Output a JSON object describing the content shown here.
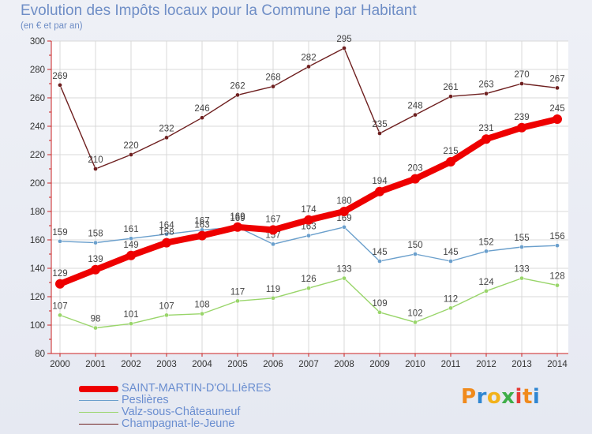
{
  "chart_data": {
    "type": "line",
    "title": "Evolution des Impôts locaux pour la Commune par Habitant",
    "subtitle": "(en € et par an)",
    "categories": [
      "2000",
      "2001",
      "2002",
      "2003",
      "2004",
      "2005",
      "2006",
      "2007",
      "2008",
      "2009",
      "2010",
      "2011",
      "2012",
      "2013",
      "2014"
    ],
    "ylim": [
      80,
      300
    ],
    "yticks": [
      80,
      100,
      120,
      140,
      160,
      180,
      200,
      220,
      240,
      260,
      280,
      300
    ],
    "grid": true,
    "legend_position": "bottom-left",
    "series": [
      {
        "name": "Champagnat-le-Jeune",
        "color": "#6e1f1f",
        "values": [
          269,
          210,
          220,
          232,
          246,
          262,
          268,
          282,
          295,
          235,
          248,
          261,
          263,
          270,
          267
        ]
      },
      {
        "name": "Valz-sous-Châteauneuf",
        "color": "#99d56a",
        "values": [
          107,
          98,
          101,
          107,
          108,
          117,
          119,
          126,
          133,
          109,
          102,
          112,
          124,
          133,
          128
        ]
      },
      {
        "name": "Peslières",
        "color": "#6a9fcc",
        "values": [
          159,
          158,
          161,
          164,
          167,
          169,
          157,
          163,
          169,
          145,
          150,
          145,
          152,
          155,
          156
        ]
      },
      {
        "name": "SAINT-MARTIN-D'OLLIèRES",
        "color": "#ee0000",
        "values": [
          129,
          139,
          149,
          158,
          163,
          169,
          167,
          174,
          180,
          194,
          203,
          215,
          231,
          239,
          245
        ]
      }
    ]
  },
  "legend": [
    {
      "label": "SAINT-MARTIN-D'OLLIèRES",
      "color": "#ee0000"
    },
    {
      "label": "Peslières",
      "color": "#6a9fcc"
    },
    {
      "label": "Valz-sous-Châteauneuf",
      "color": "#99d56a"
    },
    {
      "label": "Champagnat-le-Jeune",
      "color": "#6e1f1f"
    }
  ],
  "brand": {
    "letters": [
      "P",
      "r",
      "o",
      "x",
      "i",
      "t",
      "i"
    ],
    "colors": [
      "#f08a1c",
      "#2f86d1",
      "#f2b21b",
      "#3fae49",
      "#e53935",
      "#f08a1c",
      "#2f86d1"
    ]
  }
}
